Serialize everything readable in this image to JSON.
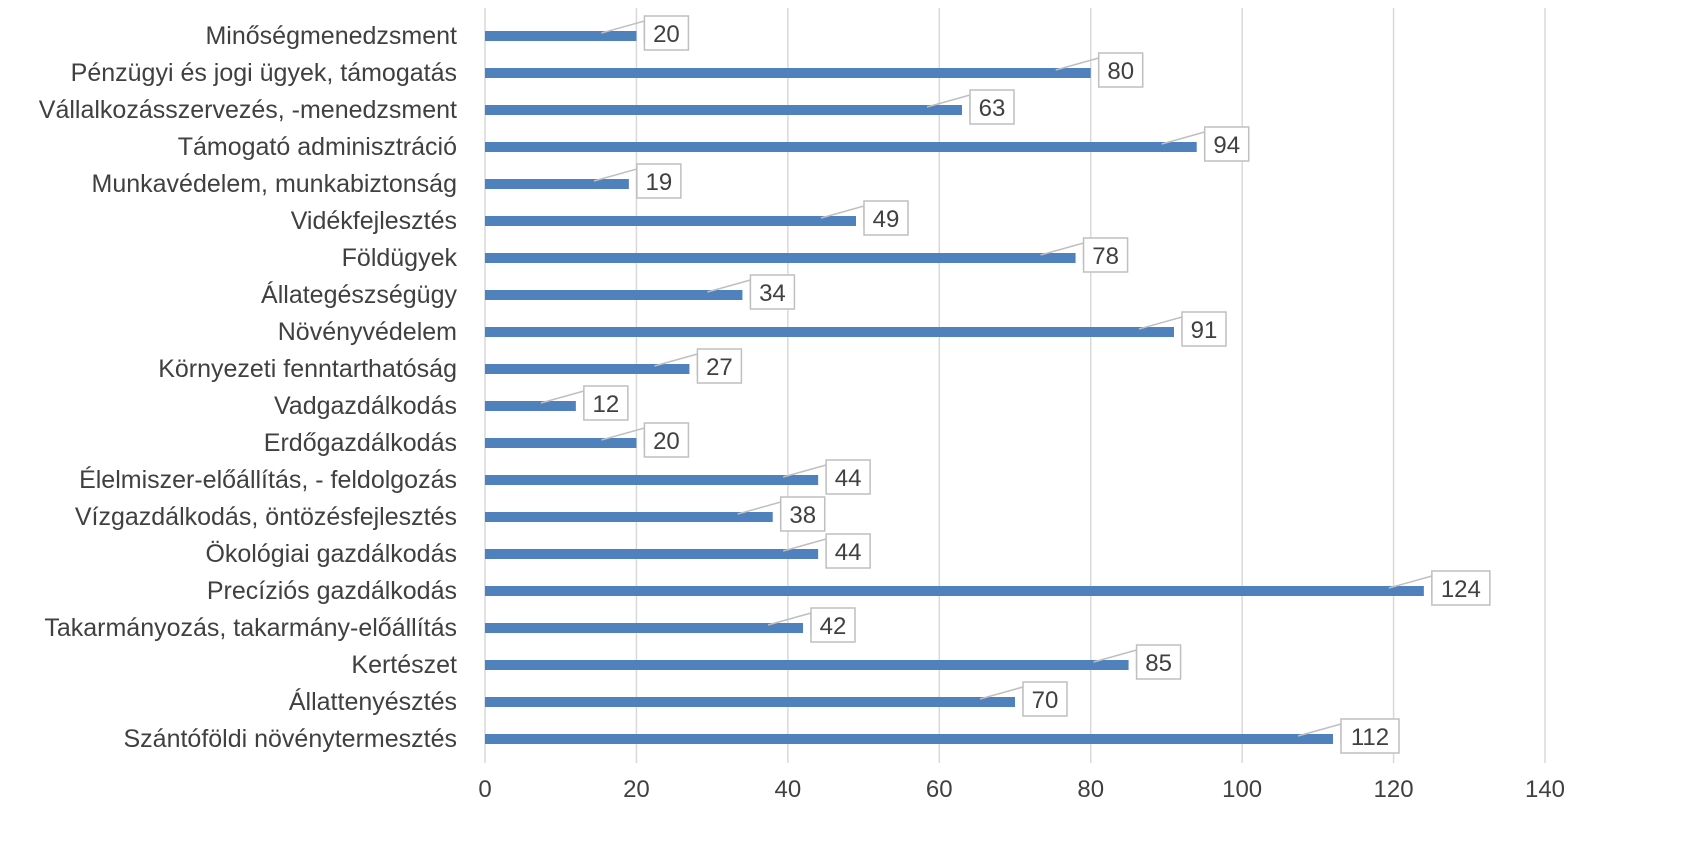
{
  "chart_data": {
    "type": "bar",
    "orientation": "horizontal",
    "title": "",
    "xlabel": "",
    "ylabel": "",
    "xlim": [
      0,
      140
    ],
    "x_ticks": [
      0,
      20,
      40,
      60,
      80,
      100,
      120,
      140
    ],
    "grid": true,
    "legend": "none",
    "bar_color": "#4f81bd",
    "categories": [
      "Minőségmenedzsment",
      "Pénzügyi és jogi ügyek, támogatás",
      "Vállalkozásszervezés, -menedzsment",
      "Támogató adminisztráció",
      "Munkavédelem, munkabiztonság",
      "Vidékfejlesztés",
      "Földügyek",
      "Állategészségügy",
      "Növényvédelem",
      "Környezeti fenntarthatóság",
      "Vadgazdálkodás",
      "Erdőgazdálkodás",
      "Élelmiszer-előállítás, - feldolgozás",
      "Vízgazdálkodás, öntözésfejlesztés",
      "Ökológiai gazdálkodás",
      "Precíziós gazdálkodás",
      "Takarmányozás, takarmány-előállítás",
      "Kertészet",
      "Állattenyésztés",
      "Szántóföldi növénytermesztés"
    ],
    "values": [
      20,
      80,
      63,
      94,
      19,
      49,
      78,
      34,
      91,
      27,
      12,
      20,
      44,
      38,
      44,
      124,
      42,
      85,
      70,
      112
    ]
  }
}
